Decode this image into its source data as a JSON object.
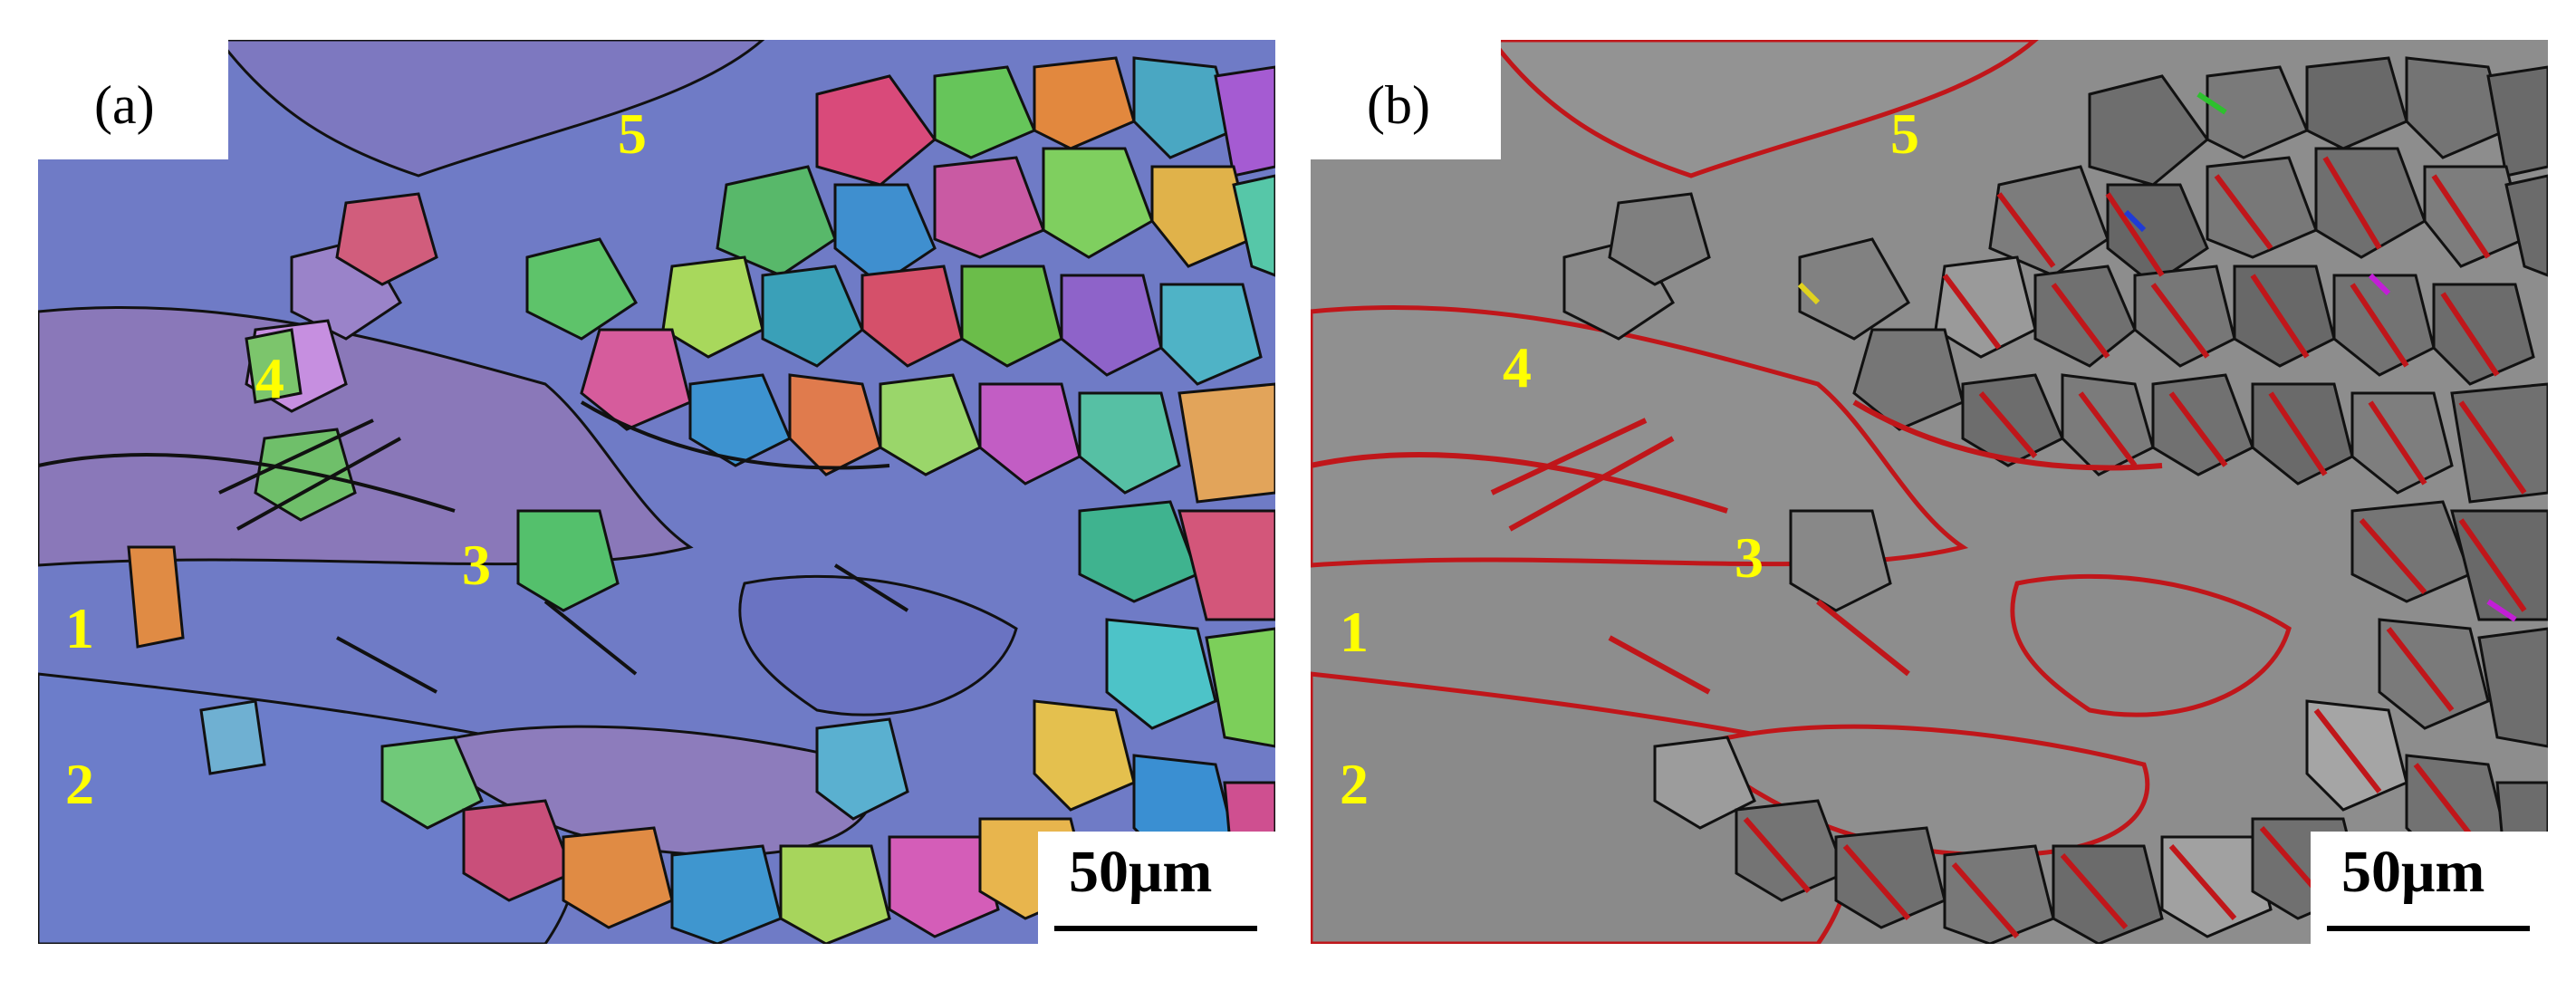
{
  "panels": [
    {
      "id": "a",
      "label": "(a)",
      "style": "ipf-color-map",
      "markers": [
        "1",
        "2",
        "3",
        "4",
        "5"
      ],
      "scale_bar": "50μm"
    },
    {
      "id": "b",
      "label": "(b)",
      "style": "grayscale-boundary-map",
      "markers": [
        "1",
        "2",
        "3",
        "4",
        "5"
      ],
      "scale_bar": "50μm"
    }
  ],
  "colors": {
    "matrix_blue": "#6d78c4",
    "matrix_purple": "#8b78b8",
    "gray_background": "#8d8d8d",
    "boundary_red": "#c0161a",
    "boundary_black": "#111111",
    "marker_yellow": "#ffff00"
  }
}
